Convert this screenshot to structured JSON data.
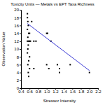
{
  "chart_data": {
    "type": "scatter",
    "title": "Toxicity Units — Metals vs EPT Taxa Richness",
    "x_label": "Stressor Intensity",
    "y_label": "Observation Value",
    "xlim": [
      0.4,
      2.2
    ],
    "xticks": [
      0.4,
      0.6,
      0.8,
      {
        "value": 1,
        "label": "1.0"
      },
      1.2,
      1.4,
      1.6,
      1.8,
      {
        "value": 2,
        "label": "2.0"
      },
      2.2
    ],
    "ylim": [
      0,
      20
    ],
    "yticks": [
      0,
      2,
      4,
      6,
      8,
      10,
      12,
      14,
      16,
      18,
      20
    ],
    "grid": false,
    "series": [
      {
        "type": "scatter",
        "color": "#000000",
        "marker": "square",
        "x": [
          0.55,
          0.55,
          0.56,
          0.57,
          0.55,
          0.58,
          0.6,
          0.56,
          0.55,
          0.58,
          0.6,
          0.62,
          0.57,
          0.56,
          0.55,
          0.6,
          0.58,
          0.56,
          0.6,
          0.57,
          0.58,
          0.65,
          0.7,
          0.75,
          0.7,
          1.0,
          1.02,
          1.0,
          1.05,
          1.1,
          1.25,
          1.3,
          1.3,
          1.55,
          2.0
        ],
        "values": [
          19,
          18,
          17,
          16,
          15,
          14,
          14,
          13,
          12,
          12,
          12,
          12,
          11,
          10,
          9,
          8,
          7,
          6,
          5,
          4,
          3,
          17,
          12,
          12,
          5,
          14,
          14,
          6,
          5,
          12,
          6,
          4,
          5,
          6,
          4
        ]
      },
      {
        "type": "line",
        "color": "#3b3bd6",
        "line_style": "solid",
        "x": [
          0.55,
          2.0
        ],
        "values": [
          16.5,
          4.5
        ]
      }
    ]
  }
}
